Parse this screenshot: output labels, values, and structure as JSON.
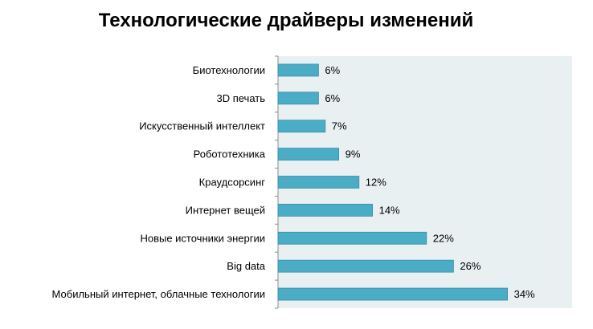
{
  "chart_data": {
    "type": "bar",
    "orientation": "horizontal",
    "title": "Технологические драйверы изменений",
    "categories": [
      "Биотехнологии",
      "3D печать",
      "Искусственный интеллект",
      "Робототехника",
      "Краудсорсинг",
      "Интернет вещей",
      "Новые источники энергии",
      "Big data",
      "Мобильный интернет, облачные технологии"
    ],
    "values": [
      6,
      6,
      7,
      9,
      12,
      14,
      22,
      26,
      34
    ],
    "value_labels": [
      "6%",
      "6%",
      "7%",
      "9%",
      "12%",
      "14%",
      "22%",
      "26%",
      "34%"
    ],
    "unit": "%",
    "xlim": [
      0,
      40
    ],
    "bar_color": "#4bacc6",
    "plot_background": "#e8f0f2",
    "grid": false,
    "legend": "none"
  }
}
